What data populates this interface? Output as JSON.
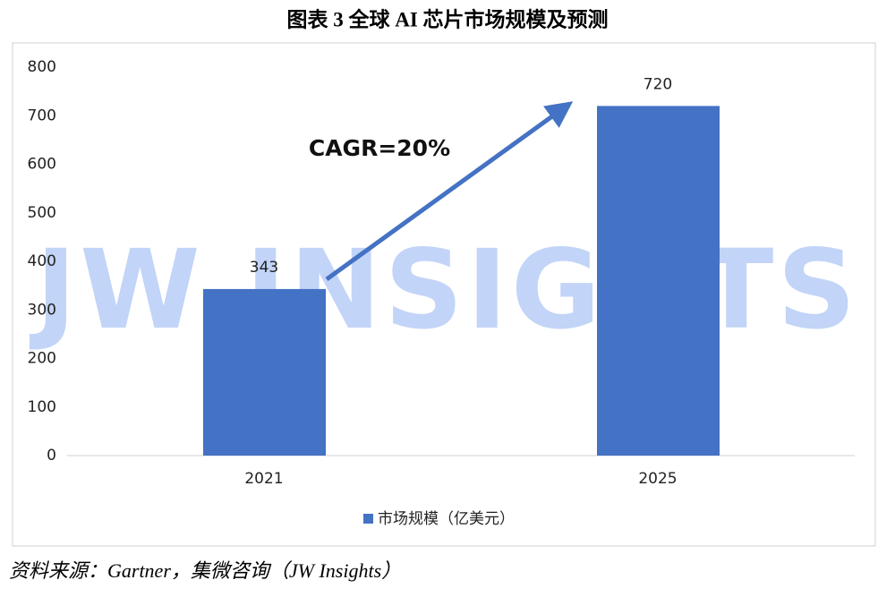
{
  "chart_data": {
    "type": "bar",
    "title": "图表 3 全球 AI 芯片市场规模及预测",
    "categories": [
      "2021",
      "2025"
    ],
    "series": [
      {
        "name": "市场规模（亿美元）",
        "color": "#4472c4",
        "values": [
          343,
          720
        ]
      }
    ],
    "ylim": [
      0,
      800
    ],
    "yticks": [
      0,
      100,
      200,
      300,
      400,
      500,
      600,
      700,
      800
    ],
    "grid": false,
    "legend": "bottom",
    "annotation": "CAGR=20%",
    "watermark": "JW INSIGHTS",
    "source": "资料来源：Gartner，集微咨询（JW Insights）"
  }
}
